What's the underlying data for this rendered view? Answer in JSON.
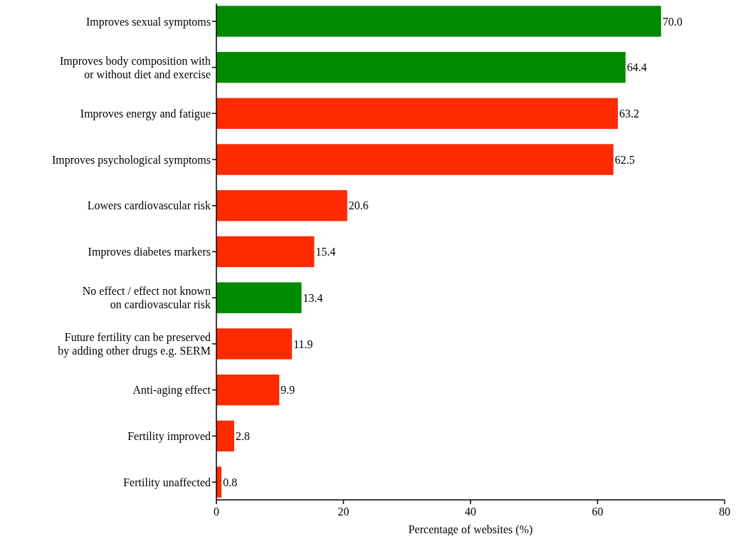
{
  "chart_data": {
    "type": "bar",
    "orientation": "horizontal",
    "xlabel": "Percentage of websites (%)",
    "categories": [
      "Improves sexual symptoms",
      "Improves body composition with or without diet and exercise",
      "Improves energy and fatigue",
      "Improves psychological symptoms",
      "Lowers cardiovascular risk",
      "Improves diabetes markers",
      "No effect / effect not known on cardiovascular risk",
      "Future fertility can be preserved by adding other drugs e.g. SERM",
      "Anti-aging effect",
      "Fertility improved",
      "Fertility unaffected"
    ],
    "values": [
      70.0,
      64.4,
      63.2,
      62.5,
      20.6,
      15.4,
      13.4,
      11.9,
      9.9,
      2.8,
      0.8
    ],
    "value_labels": [
      "70.0",
      "64.4",
      "63.2",
      "62.5",
      "20.6",
      "15.4",
      "13.4",
      "11.9",
      "9.9",
      "2.8",
      "0.8"
    ],
    "colors": [
      "#008a00",
      "#008a00",
      "#ff2a00",
      "#ff2a00",
      "#ff2a00",
      "#ff2a00",
      "#008a00",
      "#ff2a00",
      "#ff2a00",
      "#ff2a00",
      "#ff2a00"
    ],
    "xlim": [
      0,
      80
    ],
    "xticks": [
      0,
      20,
      40,
      60,
      80
    ],
    "grid": false
  }
}
